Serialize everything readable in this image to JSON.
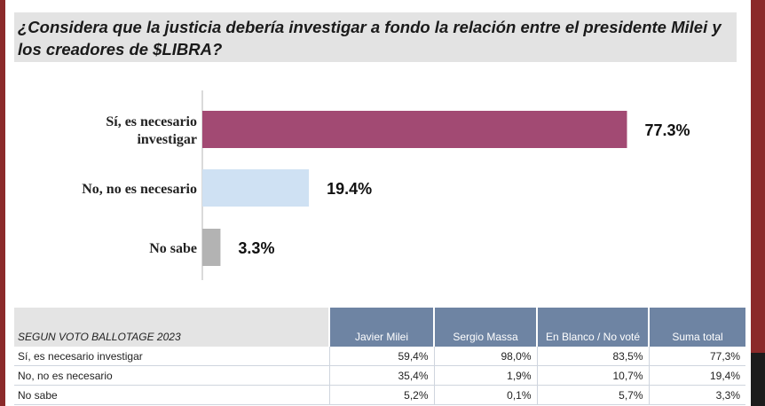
{
  "page": {
    "title": "¿Considera que la justicia debería investigar a fondo la relación entre el presidente Milei y los creadores de $LIBRA?"
  },
  "chart_data": {
    "type": "bar",
    "orientation": "horizontal",
    "title": "¿Considera que la justicia debería investigar a fondo la relación entre el presidente Milei y los creadores de $LIBRA?",
    "categories": [
      [
        "Sí, es necesario",
        "investigar"
      ],
      [
        "No, no es necesario"
      ],
      [
        "No sabe"
      ]
    ],
    "values": [
      77.3,
      19.4,
      3.3
    ],
    "value_labels": [
      "77.3%",
      "19.4%",
      "3.3%"
    ],
    "colors": [
      "#a24a73",
      "#cfe1f3",
      "#b3b3b3"
    ],
    "xlim": [
      0,
      100
    ],
    "xlabel": "",
    "ylabel": "",
    "grid": false,
    "legend": "none"
  },
  "table": {
    "caption": "SEGUN VOTO BALLOTAGE 2023",
    "columns": [
      "Javier Milei",
      "Sergio Massa",
      "En Blanco / No voté",
      "Suma total"
    ],
    "rows": [
      {
        "label": "Sí, es necesario investigar",
        "values": [
          "59,4%",
          "98,0%",
          "83,5%",
          "77,3%"
        ]
      },
      {
        "label": "No, no es necesario",
        "values": [
          "35,4%",
          "1,9%",
          "10,7%",
          "19,4%"
        ]
      },
      {
        "label": "No sabe",
        "values": [
          "5,2%",
          "0,1%",
          "5,7%",
          "3,3%"
        ]
      }
    ]
  }
}
